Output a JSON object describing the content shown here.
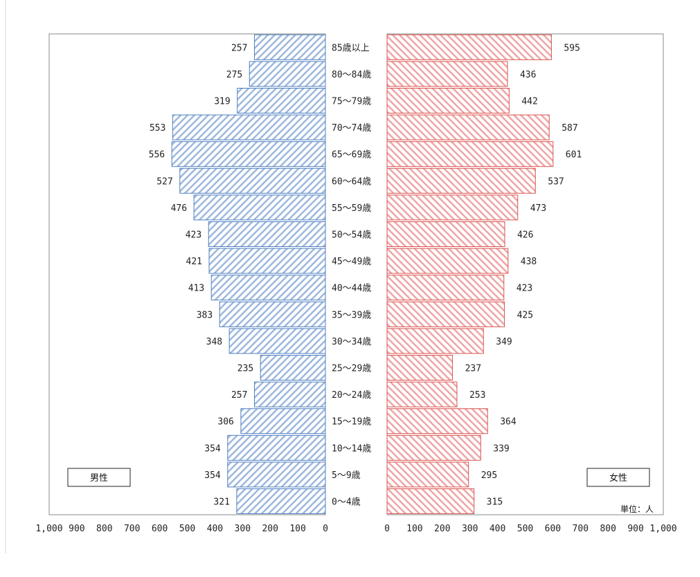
{
  "chart_data": {
    "type": "bar",
    "orientation": "horizontal",
    "layout": "population-pyramid",
    "categories": [
      "85歳以上",
      "80～84歳",
      "75～79歳",
      "70～74歳",
      "65～69歳",
      "60～64歳",
      "55～59歳",
      "50～54歳",
      "45～49歳",
      "40～44歳",
      "35～39歳",
      "30～34歳",
      "25～29歳",
      "20～24歳",
      "15～19歳",
      "10～14歳",
      "5～9歳",
      "0～4歳"
    ],
    "series": [
      {
        "name": "男性",
        "side": "left",
        "color": "#4f7fc0",
        "values": [
          257,
          275,
          319,
          553,
          556,
          527,
          476,
          423,
          421,
          413,
          383,
          348,
          235,
          257,
          306,
          354,
          354,
          321
        ]
      },
      {
        "name": "女性",
        "side": "right",
        "color": "#d9534f",
        "values": [
          595,
          436,
          442,
          587,
          601,
          537,
          473,
          426,
          438,
          423,
          425,
          349,
          237,
          253,
          364,
          339,
          295,
          315
        ]
      }
    ],
    "xlim": [
      0,
      1000
    ],
    "left_ticks": [
      "1,000",
      "900",
      "800",
      "700",
      "600",
      "500",
      "400",
      "300",
      "200",
      "100",
      "0"
    ],
    "right_ticks": [
      "0",
      "100",
      "200",
      "300",
      "400",
      "500",
      "600",
      "700",
      "800",
      "900",
      "1,000"
    ],
    "unit_label": "単位：人",
    "grid": false
  },
  "legend": {
    "male": "男性",
    "female": "女性"
  }
}
